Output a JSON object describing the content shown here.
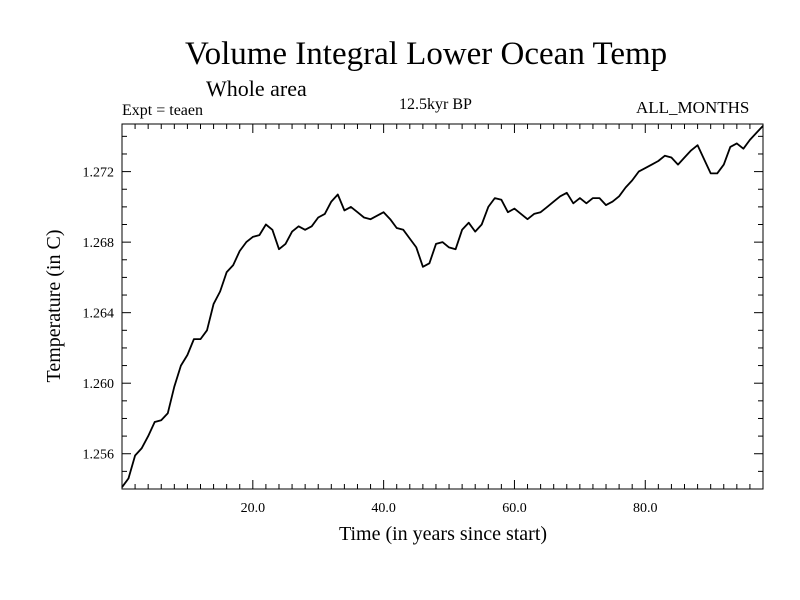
{
  "chart_data": {
    "type": "line",
    "title": "Volume Integral Lower Ocean Temp",
    "subtitle": "Whole area",
    "experiment_label": "Expt = teaen",
    "period_label": "12.5kyr BP",
    "months_label": "ALL_MONTHS",
    "xlabel": "Time (in years since start)",
    "ylabel": "Temperature (in C)",
    "xlim": [
      0,
      98
    ],
    "ylim": [
      1.254,
      1.2747
    ],
    "x_ticks": [
      20.0,
      40.0,
      60.0,
      80.0
    ],
    "x_tick_labels": [
      "20.0",
      "40.0",
      "60.0",
      "80.0"
    ],
    "y_ticks": [
      1.256,
      1.26,
      1.264,
      1.268,
      1.272
    ],
    "y_tick_labels": [
      "1.256",
      "1.260",
      "1.264",
      "1.268",
      "1.272"
    ],
    "series": [
      {
        "name": "Volume integral lower ocean temperature",
        "color": "#000000",
        "x": [
          0,
          1,
          2,
          3,
          4,
          5,
          6,
          7,
          8,
          9,
          10,
          11,
          12,
          13,
          14,
          15,
          16,
          17,
          18,
          19,
          20,
          21,
          22,
          23,
          24,
          25,
          26,
          27,
          28,
          29,
          30,
          31,
          32,
          33,
          34,
          35,
          36,
          37,
          38,
          39,
          40,
          41,
          42,
          43,
          44,
          45,
          46,
          47,
          48,
          49,
          50,
          51,
          52,
          53,
          54,
          55,
          56,
          57,
          58,
          59,
          60,
          61,
          62,
          63,
          64,
          65,
          66,
          67,
          68,
          69,
          70,
          71,
          72,
          73,
          74,
          75,
          76,
          77,
          78,
          79,
          80,
          81,
          82,
          83,
          84,
          85,
          86,
          87,
          88,
          89,
          90,
          91,
          92,
          93,
          94,
          95,
          96,
          97,
          98
        ],
        "values": [
          1.2541,
          1.2546,
          1.2559,
          1.2563,
          1.257,
          1.2578,
          1.2579,
          1.2583,
          1.2598,
          1.261,
          1.2616,
          1.2625,
          1.2625,
          1.263,
          1.2645,
          1.2652,
          1.2663,
          1.2667,
          1.2675,
          1.268,
          1.2683,
          1.2684,
          1.269,
          1.2687,
          1.2676,
          1.2679,
          1.2686,
          1.2689,
          1.2687,
          1.2689,
          1.2694,
          1.2696,
          1.2703,
          1.2707,
          1.2698,
          1.27,
          1.2697,
          1.2694,
          1.2693,
          1.2695,
          1.2697,
          1.2693,
          1.2688,
          1.2687,
          1.2682,
          1.2677,
          1.2666,
          1.2668,
          1.2679,
          1.268,
          1.2677,
          1.2676,
          1.2687,
          1.2691,
          1.2686,
          1.269,
          1.27,
          1.2705,
          1.2704,
          1.2697,
          1.2699,
          1.2696,
          1.2693,
          1.2696,
          1.2697,
          1.27,
          1.2703,
          1.2706,
          1.2708,
          1.2702,
          1.2705,
          1.2702,
          1.2705,
          1.2705,
          1.2701,
          1.2703,
          1.2706,
          1.2711,
          1.2715,
          1.272,
          1.2722,
          1.2724,
          1.2726,
          1.2729,
          1.2728,
          1.2724,
          1.2728,
          1.2732,
          1.2735,
          1.2727,
          1.2719,
          1.2719,
          1.2724,
          1.2734,
          1.2736,
          1.2733,
          1.2738,
          1.2742,
          1.2746
        ]
      }
    ]
  }
}
